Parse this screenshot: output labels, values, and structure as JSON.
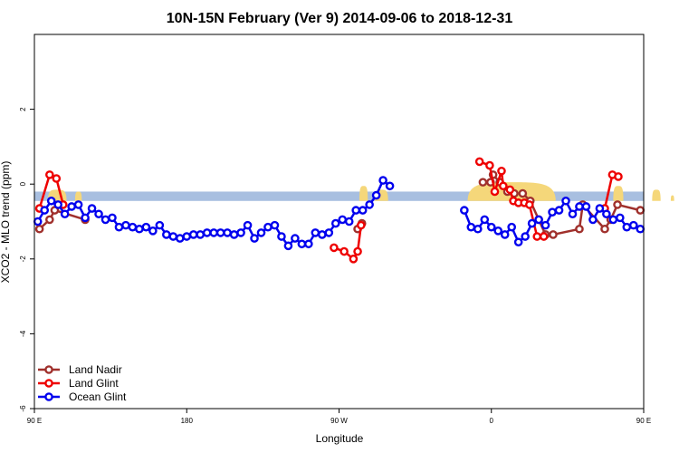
{
  "chart_data": {
    "type": "line",
    "title": "10N-15N February (Ver 9)   2014-09-06 to 2018-12-31",
    "xlabel": "Longitude",
    "ylabel": "XCO2 - MLO trend (ppm)",
    "xlim": [
      90,
      450
    ],
    "ylim": [
      -6,
      4
    ],
    "x_ticks": [
      {
        "value": 90,
        "label": "90 E"
      },
      {
        "value": 180,
        "label": "180"
      },
      {
        "value": 270,
        "label": "90 W"
      },
      {
        "value": 360,
        "label": "0"
      },
      {
        "value": 450,
        "label": "90 E"
      },
      {
        "value": 540,
        "label": "180"
      }
    ],
    "y_ticks": [
      {
        "value": -6,
        "label": "-6"
      },
      {
        "value": -4,
        "label": "-4"
      },
      {
        "value": -2,
        "label": "-2"
      },
      {
        "value": 0,
        "label": "0"
      },
      {
        "value": 2,
        "label": "2"
      }
    ],
    "legend_position": "bottom-left",
    "background_band": {
      "y_min": -0.45,
      "y_max": -0.2,
      "color": "#a8bfe0"
    },
    "land_color": "#f5d77a",
    "land_regions": [
      {
        "x_start": 98,
        "x_end": 109,
        "peak": -0.15
      },
      {
        "x_start": 114,
        "x_end": 118,
        "peak": -0.2
      },
      {
        "x_start": 282,
        "x_end": 287,
        "peak": -0.05
      },
      {
        "x_start": 291,
        "x_end": 299,
        "peak": -0.15
      },
      {
        "x_start": 346,
        "x_end": 398,
        "peak": 0.05
      },
      {
        "x_start": 432,
        "x_end": 438,
        "peak": -0.05
      },
      {
        "x_start": 455,
        "x_end": 460,
        "peak": -0.15
      },
      {
        "x_start": 466,
        "x_end": 468,
        "peak": -0.3
      }
    ],
    "series": [
      {
        "name": "Land Nadir",
        "color": "#a0302c",
        "points": [
          [
            93.0,
            -1.2
          ],
          [
            99.0,
            -0.95
          ],
          [
            102.0,
            -0.7
          ],
          [
            120.0,
            -0.95
          ],
          [
            281.0,
            -1.2
          ],
          [
            283.5,
            -1.05
          ],
          [
            355.0,
            0.05
          ],
          [
            359.5,
            0.05
          ],
          [
            361.0,
            0.25
          ],
          [
            365.0,
            0.05
          ],
          [
            369.5,
            -0.2
          ],
          [
            373.5,
            -0.25
          ],
          [
            378.5,
            -0.25
          ],
          [
            383.0,
            -0.45
          ],
          [
            388.0,
            -0.95
          ],
          [
            392.0,
            -1.35
          ],
          [
            396.5,
            -1.35
          ],
          [
            412.0,
            -1.2
          ],
          [
            414.0,
            -0.55
          ],
          [
            427.0,
            -1.2
          ],
          [
            430.5,
            -0.95
          ],
          [
            434.5,
            -0.55
          ],
          [
            448.0,
            -0.7
          ]
        ]
      },
      {
        "name": "Land Glint",
        "color": "#ee0000",
        "points": [
          [
            93.0,
            -0.65
          ],
          [
            99.0,
            0.25
          ],
          [
            103.0,
            0.15
          ],
          [
            107.0,
            -0.55
          ],
          [
            267.0,
            -1.7
          ],
          [
            273.0,
            -1.8
          ],
          [
            278.5,
            -2.0
          ],
          [
            281.0,
            -1.8
          ],
          [
            283.0,
            -1.1
          ],
          [
            353.0,
            0.6
          ],
          [
            359.0,
            0.5
          ],
          [
            362.0,
            -0.2
          ],
          [
            366.0,
            0.35
          ],
          [
            367.0,
            -0.05
          ],
          [
            371.0,
            -0.15
          ],
          [
            373.0,
            -0.45
          ],
          [
            376.0,
            -0.5
          ],
          [
            379.5,
            -0.5
          ],
          [
            382.5,
            -0.55
          ],
          [
            387.0,
            -1.4
          ],
          [
            391.0,
            -1.4
          ],
          [
            427.0,
            -0.65
          ],
          [
            431.5,
            0.25
          ],
          [
            435.0,
            0.2
          ]
        ]
      },
      {
        "name": "Ocean Glint",
        "color": "#0000ee",
        "points": [
          [
            92.0,
            -1.0
          ],
          [
            96.0,
            -0.7
          ],
          [
            100.0,
            -0.45
          ],
          [
            104.0,
            -0.55
          ],
          [
            108.0,
            -0.8
          ],
          [
            112.0,
            -0.6
          ],
          [
            116.0,
            -0.55
          ],
          [
            120.0,
            -0.9
          ],
          [
            124.0,
            -0.65
          ],
          [
            128.0,
            -0.8
          ],
          [
            132.0,
            -0.95
          ],
          [
            136.0,
            -0.9
          ],
          [
            140.0,
            -1.15
          ],
          [
            144.0,
            -1.1
          ],
          [
            148.0,
            -1.15
          ],
          [
            152.0,
            -1.2
          ],
          [
            156.0,
            -1.15
          ],
          [
            160.0,
            -1.25
          ],
          [
            164.0,
            -1.1
          ],
          [
            168.0,
            -1.35
          ],
          [
            172.0,
            -1.4
          ],
          [
            176.0,
            -1.45
          ],
          [
            180.0,
            -1.4
          ],
          [
            184.0,
            -1.35
          ],
          [
            188.0,
            -1.35
          ],
          [
            192.0,
            -1.3
          ],
          [
            196.0,
            -1.3
          ],
          [
            200.0,
            -1.3
          ],
          [
            204.0,
            -1.3
          ],
          [
            208.0,
            -1.35
          ],
          [
            212.0,
            -1.3
          ],
          [
            216.0,
            -1.1
          ],
          [
            220.0,
            -1.45
          ],
          [
            224.0,
            -1.3
          ],
          [
            228.0,
            -1.15
          ],
          [
            232.0,
            -1.1
          ],
          [
            236.0,
            -1.4
          ],
          [
            240.0,
            -1.65
          ],
          [
            244.0,
            -1.45
          ],
          [
            248.0,
            -1.6
          ],
          [
            252.0,
            -1.6
          ],
          [
            256.0,
            -1.3
          ],
          [
            260.0,
            -1.35
          ],
          [
            264.0,
            -1.3
          ],
          [
            268.0,
            -1.05
          ],
          [
            272.0,
            -0.95
          ],
          [
            276.0,
            -1.0
          ],
          [
            280.0,
            -0.7
          ],
          [
            284.0,
            -0.7
          ],
          [
            288.0,
            -0.55
          ],
          [
            292.0,
            -0.3
          ],
          [
            296.0,
            0.1
          ],
          [
            300.0,
            -0.05
          ],
          [
            344.0,
            -0.7
          ],
          [
            348.0,
            -1.15
          ],
          [
            352.0,
            -1.2
          ],
          [
            356.0,
            -0.95
          ],
          [
            360.0,
            -1.15
          ],
          [
            364.0,
            -1.25
          ],
          [
            368.0,
            -1.35
          ],
          [
            372.0,
            -1.15
          ],
          [
            376.0,
            -1.55
          ],
          [
            380.0,
            -1.4
          ],
          [
            384.0,
            -1.05
          ],
          [
            388.0,
            -0.95
          ],
          [
            392.0,
            -1.1
          ],
          [
            396.0,
            -0.75
          ],
          [
            400.0,
            -0.7
          ],
          [
            404.0,
            -0.45
          ],
          [
            408.0,
            -0.8
          ],
          [
            412.0,
            -0.6
          ],
          [
            416.0,
            -0.6
          ],
          [
            420.0,
            -0.95
          ],
          [
            424.0,
            -0.65
          ],
          [
            428.0,
            -0.8
          ],
          [
            432.0,
            -0.95
          ],
          [
            436.0,
            -0.9
          ],
          [
            440.0,
            -1.15
          ],
          [
            444.0,
            -1.1
          ],
          [
            448.0,
            -1.2
          ]
        ]
      }
    ]
  }
}
